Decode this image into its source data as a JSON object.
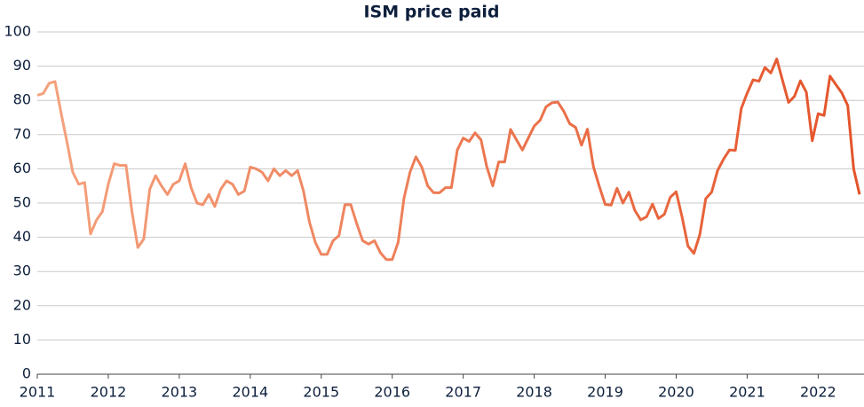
{
  "chart_data": {
    "type": "line",
    "title": "ISM price paid",
    "x": [
      "2011-01",
      "2011-02",
      "2011-03",
      "2011-04",
      "2011-05",
      "2011-06",
      "2011-07",
      "2011-08",
      "2011-09",
      "2011-10",
      "2011-11",
      "2011-12",
      "2012-01",
      "2012-02",
      "2012-03",
      "2012-04",
      "2012-05",
      "2012-06",
      "2012-07",
      "2012-08",
      "2012-09",
      "2012-10",
      "2012-11",
      "2012-12",
      "2013-01",
      "2013-02",
      "2013-03",
      "2013-04",
      "2013-05",
      "2013-06",
      "2013-07",
      "2013-08",
      "2013-09",
      "2013-10",
      "2013-11",
      "2013-12",
      "2014-01",
      "2014-02",
      "2014-03",
      "2014-04",
      "2014-05",
      "2014-06",
      "2014-07",
      "2014-08",
      "2014-09",
      "2014-10",
      "2014-11",
      "2014-12",
      "2015-01",
      "2015-02",
      "2015-03",
      "2015-04",
      "2015-05",
      "2015-06",
      "2015-07",
      "2015-08",
      "2015-09",
      "2015-10",
      "2015-11",
      "2015-12",
      "2016-01",
      "2016-02",
      "2016-03",
      "2016-04",
      "2016-05",
      "2016-06",
      "2016-07",
      "2016-08",
      "2016-09",
      "2016-10",
      "2016-11",
      "2016-12",
      "2017-01",
      "2017-02",
      "2017-03",
      "2017-04",
      "2017-05",
      "2017-06",
      "2017-07",
      "2017-08",
      "2017-09",
      "2017-10",
      "2017-11",
      "2017-12",
      "2018-01",
      "2018-02",
      "2018-03",
      "2018-04",
      "2018-05",
      "2018-06",
      "2018-07",
      "2018-08",
      "2018-09",
      "2018-10",
      "2018-11",
      "2018-12",
      "2019-01",
      "2019-02",
      "2019-03",
      "2019-04",
      "2019-05",
      "2019-06",
      "2019-07",
      "2019-08",
      "2019-09",
      "2019-10",
      "2019-11",
      "2019-12",
      "2020-01",
      "2020-02",
      "2020-03",
      "2020-04",
      "2020-05",
      "2020-06",
      "2020-07",
      "2020-08",
      "2020-09",
      "2020-10",
      "2020-11",
      "2020-12",
      "2021-01",
      "2021-02",
      "2021-03",
      "2021-04",
      "2021-05",
      "2021-06",
      "2021-07",
      "2021-08",
      "2021-09",
      "2021-10",
      "2021-11",
      "2021-12",
      "2022-01",
      "2022-02",
      "2022-03",
      "2022-04",
      "2022-05",
      "2022-06",
      "2022-07",
      "2022-08"
    ],
    "values": [
      81.5,
      82,
      85,
      85.5,
      76.5,
      68,
      59,
      55.5,
      56,
      41,
      45,
      47.5,
      55.5,
      61.5,
      61,
      61,
      47.5,
      37,
      39.5,
      54,
      58,
      55,
      52.5,
      55.5,
      56.5,
      61.5,
      54.5,
      50,
      49.5,
      52.5,
      49,
      54,
      56.5,
      55.5,
      52.5,
      53.5,
      60.5,
      60,
      59,
      56.5,
      60,
      58,
      59.5,
      58,
      59.5,
      53.5,
      44.5,
      38.5,
      35,
      35,
      39,
      40.5,
      49.5,
      49.5,
      44,
      39,
      38,
      39,
      35.5,
      33.5,
      33.5,
      38.5,
      51.5,
      59,
      63.5,
      60.5,
      55,
      53,
      53,
      54.5,
      54.5,
      65.5,
      69,
      68,
      70.5,
      68.5,
      60.5,
      55,
      62,
      62,
      71.5,
      68.5,
      65.5,
      69,
      72.5,
      74.2,
      78.1,
      79.3,
      79.5,
      76.8,
      73.2,
      72.1,
      66.9,
      71.6,
      60.7,
      54.9,
      49.6,
      49.4,
      54.3,
      50,
      53.2,
      47.9,
      45.1,
      46,
      49.7,
      45.5,
      46.7,
      51.7,
      53.3,
      45.9,
      37.4,
      35.3,
      40.8,
      51.3,
      53.2,
      59.5,
      62.8,
      65.5,
      65.4,
      77.6,
      82.1,
      86,
      85.6,
      89.6,
      88,
      92.1,
      85.7,
      79.4,
      81.2,
      85.7,
      82.4,
      68.2,
      76.1,
      75.6,
      87.1,
      84.6,
      82.2,
      78.5,
      60,
      52.5
    ],
    "gradient": [
      "#f5a27e",
      "#e4532a"
    ],
    "xlim": [
      "2011-01",
      "2022-08"
    ],
    "xticks": [
      {
        "value": "2011-01",
        "label": "2011"
      },
      {
        "value": "2012-01",
        "label": "2012"
      },
      {
        "value": "2013-01",
        "label": "2013"
      },
      {
        "value": "2014-01",
        "label": "2014"
      },
      {
        "value": "2015-01",
        "label": "2015"
      },
      {
        "value": "2016-01",
        "label": "2016"
      },
      {
        "value": "2017-01",
        "label": "2017"
      },
      {
        "value": "2018-01",
        "label": "2018"
      },
      {
        "value": "2019-01",
        "label": "2019"
      },
      {
        "value": "2020-01",
        "label": "2020"
      },
      {
        "value": "2021-01",
        "label": "2021"
      },
      {
        "value": "2022-01",
        "label": "2022"
      }
    ],
    "ylim": [
      0,
      100
    ],
    "yticks": [
      0,
      10,
      20,
      30,
      40,
      50,
      60,
      70,
      80,
      90,
      100
    ],
    "grid": true
  }
}
